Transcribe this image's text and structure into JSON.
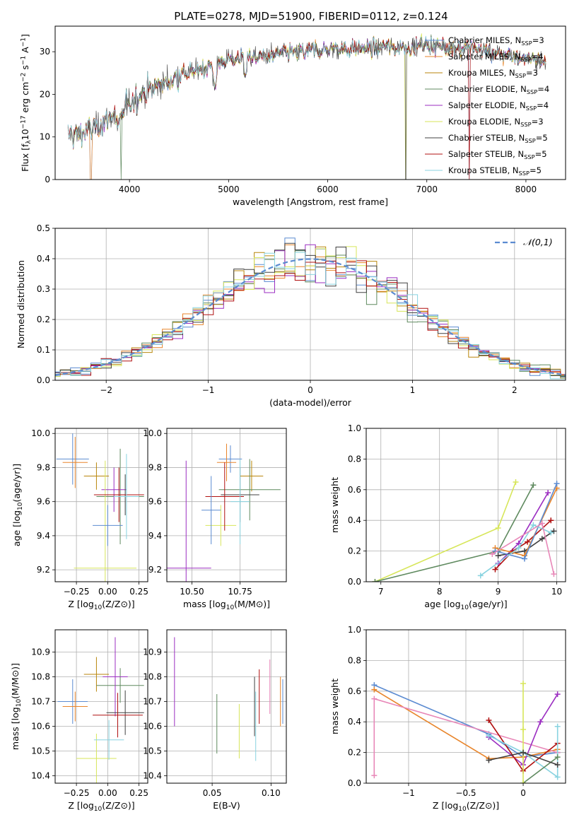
{
  "figure_title": "PLATE=0278, MJD=51900, FIBERID=0112, z=0.124",
  "models": [
    {
      "name": "Chabrier MILES, N_SSP=3",
      "color": "#5b8bd1"
    },
    {
      "name": "Salpeter MILES, N_SSP=4",
      "color": "#e8852b"
    },
    {
      "name": "Kroupa MILES, N_SSP=3",
      "color": "#b8860b"
    },
    {
      "name": "Chabrier ELODIE, N_SSP=4",
      "color": "#5f8a5f"
    },
    {
      "name": "Salpeter ELODIE, N_SSP=4",
      "color": "#9b2ec1"
    },
    {
      "name": "Kroupa ELODIE, N_SSP=3",
      "color": "#d7e65a"
    },
    {
      "name": "Chabrier STELIB, N_SSP=5",
      "color": "#404040"
    },
    {
      "name": "Salpeter STELIB, N_SSP=5",
      "color": "#b01010"
    },
    {
      "name": "Kroupa STELIB, N_SSP=5",
      "color": "#88d3e0"
    }
  ],
  "chart_data": [
    {
      "id": "spectrum",
      "type": "line",
      "xlabel": "wavelength [Angstrom, rest frame]",
      "ylabel": "Flux [f_λ10^-17 erg cm^-2 s^-1 A^-1]",
      "xlim": [
        3250,
        8400
      ],
      "ylim": [
        0,
        36
      ],
      "xticks": [
        4000,
        5000,
        6000,
        7000,
        8000
      ],
      "yticks": [
        0,
        10,
        20,
        30
      ],
      "grid": false,
      "legend": "top-right",
      "continuum_x": [
        3400,
        3600,
        3800,
        4000,
        4200,
        4500,
        5000,
        5500,
        6000,
        6500,
        7000,
        7500,
        8000,
        8200
      ],
      "continuum_y": [
        10.5,
        11.5,
        14.5,
        18,
        21,
        24.5,
        28,
        29.5,
        30.5,
        30.8,
        31.5,
        30.5,
        28.5,
        27.5
      ],
      "dips_to_zero": [
        3610,
        3920,
        6790,
        7430
      ]
    },
    {
      "id": "residuals",
      "type": "histogram",
      "xlabel": "(data-model)/error",
      "ylabel": "Normed distribution",
      "xlim": [
        -2.5,
        2.5
      ],
      "ylim": [
        0,
        0.5
      ],
      "xticks": [
        -2,
        -1,
        0,
        1,
        2
      ],
      "yticks": [
        0.0,
        0.1,
        0.2,
        0.3,
        0.4,
        0.5
      ],
      "grid": true,
      "legend": "top-right",
      "reference_label": "𝒩(0,1)",
      "bin_width": 0.1
    },
    {
      "id": "age_vs_Z",
      "type": "errorbar",
      "xlabel": "Z [log10(Z/Z⊙)]",
      "ylabel": "age  [log10(age/yr)]",
      "xlim": [
        -0.42,
        0.32
      ],
      "ylim": [
        9.13,
        10.03
      ],
      "xticks": [
        -0.25,
        0.0,
        0.25
      ],
      "yticks": [
        9.2,
        9.4,
        9.6,
        9.8,
        10.0
      ],
      "grid": true,
      "points": [
        {
          "x": -0.28,
          "xerr": 0.13,
          "y": 9.85,
          "yerr": 0.15
        },
        {
          "x": -0.26,
          "xerr": 0.1,
          "y": 9.83,
          "yerr": 0.15
        },
        {
          "x": -0.09,
          "xerr": 0.1,
          "y": 9.75,
          "yerr": 0.08
        },
        {
          "x": 0.1,
          "xerr": 0.19,
          "y": 9.63,
          "yerr": 0.28
        },
        {
          "x": 0.05,
          "xerr": 0.1,
          "y": 9.67,
          "yerr": 0.13
        },
        {
          "x": -0.02,
          "xerr": 0.25,
          "y": 9.21,
          "yerr": 0.63
        },
        {
          "x": 0.14,
          "xerr": 0.15,
          "y": 9.64,
          "yerr": 0.12
        },
        {
          "x": 0.09,
          "xerr": 0.2,
          "y": 9.64,
          "yerr": 0.16
        },
        {
          "x": 0.15,
          "xerr": 0.1,
          "y": 9.63,
          "yerr": 0.25
        },
        {
          "x": 0.0,
          "xerr": 0.12,
          "y": 9.46,
          "yerr": 0.12
        }
      ]
    },
    {
      "id": "age_vs_mass",
      "type": "errorbar",
      "xlabel": "mass [log10(M/M⊙)]",
      "ylabel": "",
      "xlim": [
        10.37,
        10.99
      ],
      "ylim": [
        9.13,
        10.03
      ],
      "xticks": [
        10.5,
        10.75
      ],
      "yticks": [
        9.2,
        9.4,
        9.6,
        9.8,
        10.0
      ],
      "grid": true,
      "points": [
        {
          "x": 10.7,
          "xerr": 0.06,
          "y": 9.85,
          "yerr": 0.08
        },
        {
          "x": 10.68,
          "xerr": 0.05,
          "y": 9.83,
          "yerr": 0.11
        },
        {
          "x": 10.81,
          "xerr": 0.06,
          "y": 9.75,
          "yerr": 0.09
        },
        {
          "x": 10.8,
          "xerr": 0.16,
          "y": 9.67,
          "yerr": 0.18
        },
        {
          "x": 10.47,
          "xerr": 0.13,
          "y": 9.21,
          "yerr": 0.63
        },
        {
          "x": 10.65,
          "xerr": 0.08,
          "y": 9.46,
          "yerr": 0.12
        },
        {
          "x": 10.75,
          "xerr": 0.1,
          "y": 9.64,
          "yerr": 0.16
        },
        {
          "x": 10.67,
          "xerr": 0.1,
          "y": 9.63,
          "yerr": 0.2
        },
        {
          "x": 10.75,
          "xerr": 0.05,
          "y": 9.6,
          "yerr": 0.25
        },
        {
          "x": 10.6,
          "xerr": 0.05,
          "y": 9.55,
          "yerr": 0.2
        }
      ]
    },
    {
      "id": "weight_vs_age",
      "type": "line",
      "xlabel": "age  [log10(age/yr)]",
      "ylabel": "mass weight",
      "xlim": [
        6.75,
        10.15
      ],
      "ylim": [
        0,
        1
      ],
      "xticks": [
        7,
        8,
        9,
        10
      ],
      "yticks": [
        0.0,
        0.2,
        0.4,
        0.6,
        0.8,
        1.0
      ],
      "grid": true,
      "series": [
        {
          "color": "#d7e65a",
          "x": [
            6.9,
            9.0,
            9.3
          ],
          "y": [
            0.0,
            0.35,
            0.65
          ]
        },
        {
          "color": "#5f8a5f",
          "x": [
            6.9,
            9.0,
            9.6
          ],
          "y": [
            0.0,
            0.2,
            0.63
          ]
        },
        {
          "color": "#9b2ec1",
          "x": [
            9.0,
            9.35,
            9.85
          ],
          "y": [
            0.12,
            0.25,
            0.58
          ]
        },
        {
          "color": "#b01010",
          "x": [
            8.95,
            9.25,
            9.5,
            9.9
          ],
          "y": [
            0.08,
            0.2,
            0.26,
            0.4
          ]
        },
        {
          "color": "#404040",
          "x": [
            9.0,
            9.45,
            9.75,
            9.95
          ],
          "y": [
            0.17,
            0.2,
            0.28,
            0.33
          ]
        },
        {
          "color": "#e8852b",
          "x": [
            8.95,
            9.45,
            10.0
          ],
          "y": [
            0.22,
            0.17,
            0.61
          ]
        },
        {
          "color": "#5b8bd1",
          "x": [
            8.95,
            9.45,
            10.0
          ],
          "y": [
            0.2,
            0.15,
            0.64
          ]
        },
        {
          "color": "#88d3e0",
          "x": [
            8.7,
            9.35,
            9.6,
            9.9
          ],
          "y": [
            0.04,
            0.22,
            0.37,
            0.32
          ]
        },
        {
          "color": "#e887b8",
          "x": [
            8.9,
            9.75,
            9.95
          ],
          "y": [
            0.18,
            0.38,
            0.05
          ]
        }
      ]
    },
    {
      "id": "mass_vs_Z",
      "type": "errorbar",
      "xlabel": "Z [log10(Z/Z⊙)]",
      "ylabel": "mass [log10(M/M⊙)]",
      "xlim": [
        -0.42,
        0.32
      ],
      "ylim": [
        10.37,
        10.99
      ],
      "xticks": [
        -0.25,
        0.0,
        0.25
      ],
      "yticks": [
        10.4,
        10.5,
        10.6,
        10.7,
        10.8,
        10.9
      ],
      "grid": true,
      "points": [
        {
          "x": -0.28,
          "xerr": 0.12,
          "y": 10.7,
          "yerr": 0.09
        },
        {
          "x": -0.26,
          "xerr": 0.1,
          "y": 10.68,
          "yerr": 0.06
        },
        {
          "x": -0.09,
          "xerr": 0.1,
          "y": 10.81,
          "yerr": 0.07
        },
        {
          "x": 0.1,
          "xerr": 0.19,
          "y": 10.765,
          "yerr": 0.07
        },
        {
          "x": 0.06,
          "xerr": 0.1,
          "y": 10.8,
          "yerr": 0.16
        },
        {
          "x": -0.09,
          "xerr": 0.16,
          "y": 10.47,
          "yerr": 0.1
        },
        {
          "x": 0.14,
          "xerr": 0.15,
          "y": 10.655,
          "yerr": 0.09
        },
        {
          "x": 0.08,
          "xerr": 0.2,
          "y": 10.645,
          "yerr": 0.09
        },
        {
          "x": 0.01,
          "xerr": 0.12,
          "y": 10.545,
          "yerr": 0.08
        }
      ]
    },
    {
      "id": "mass_vs_EBV",
      "type": "errorbar",
      "xlabel": "E(B-V)",
      "ylabel": "",
      "xlim": [
        0.0115,
        0.113
      ],
      "ylim": [
        10.37,
        10.99
      ],
      "xticks": [
        0.05,
        0.1
      ],
      "yticks": [
        10.4,
        10.5,
        10.6,
        10.7,
        10.8,
        10.9
      ],
      "grid": true,
      "points": [
        {
          "x": 0.018,
          "y": 10.78,
          "yerr": 0.18,
          "color": "#9b2ec1"
        },
        {
          "x": 0.054,
          "y": 10.61,
          "yerr": 0.12,
          "color": "#5f8a5f"
        },
        {
          "x": 0.073,
          "y": 10.58,
          "yerr": 0.11,
          "color": "#d7e65a"
        },
        {
          "x": 0.086,
          "y": 10.68,
          "yerr": 0.12,
          "color": "#404040"
        },
        {
          "x": 0.087,
          "y": 10.6,
          "yerr": 0.14,
          "color": "#88d3e0"
        },
        {
          "x": 0.09,
          "y": 10.72,
          "yerr": 0.11,
          "color": "#b01010"
        },
        {
          "x": 0.099,
          "y": 10.76,
          "yerr": 0.11,
          "color": "#e887b8"
        },
        {
          "x": 0.108,
          "y": 10.7,
          "yerr": 0.1,
          "color": "#e8852b"
        },
        {
          "x": 0.11,
          "y": 10.7,
          "yerr": 0.09,
          "color": "#5b8bd1"
        }
      ]
    },
    {
      "id": "weight_vs_Z",
      "type": "line",
      "xlabel": "Z [log10(Z/Z⊙)]",
      "ylabel": "mass weight",
      "xlim": [
        -1.37,
        0.37
      ],
      "ylim": [
        0,
        1
      ],
      "xticks": [
        -1.0,
        -0.5,
        0.0
      ],
      "yticks": [
        0.0,
        0.2,
        0.4,
        0.6,
        0.8,
        1.0
      ],
      "grid": true,
      "series": [
        {
          "color": "#5b8bd1",
          "x": [
            -1.3,
            -0.3,
            0.0,
            0.3
          ],
          "y": [
            0.64,
            0.32,
            0.17,
            0.2
          ]
        },
        {
          "color": "#e8852b",
          "x": [
            -1.3,
            -0.3,
            0.0,
            0.3
          ],
          "y": [
            0.61,
            0.16,
            0.17,
            0.22
          ]
        },
        {
          "color": "#e887b8",
          "x": [
            -1.3,
            -1.3,
            0.3
          ],
          "y": [
            0.05,
            0.55,
            0.2
          ]
        },
        {
          "color": "#9b2ec1",
          "x": [
            -0.3,
            0.0,
            0.15,
            0.3
          ],
          "y": [
            0.3,
            0.12,
            0.4,
            0.58
          ]
        },
        {
          "color": "#b01010",
          "x": [
            -0.3,
            0.0,
            0.3
          ],
          "y": [
            0.41,
            0.08,
            0.26
          ]
        },
        {
          "color": "#88d3e0",
          "x": [
            -0.3,
            0.0,
            0.3,
            0.3
          ],
          "y": [
            0.31,
            0.2,
            0.04,
            0.37
          ]
        },
        {
          "color": "#5f8a5f",
          "x": [
            0.0,
            0.3
          ],
          "y": [
            0.0,
            0.17
          ]
        },
        {
          "color": "#d7e65a",
          "x": [
            0.0,
            0.0,
            0.0
          ],
          "y": [
            0.0,
            0.35,
            0.65
          ]
        },
        {
          "color": "#404040",
          "x": [
            -0.3,
            0.0,
            0.3
          ],
          "y": [
            0.15,
            0.2,
            0.12
          ]
        }
      ]
    }
  ]
}
